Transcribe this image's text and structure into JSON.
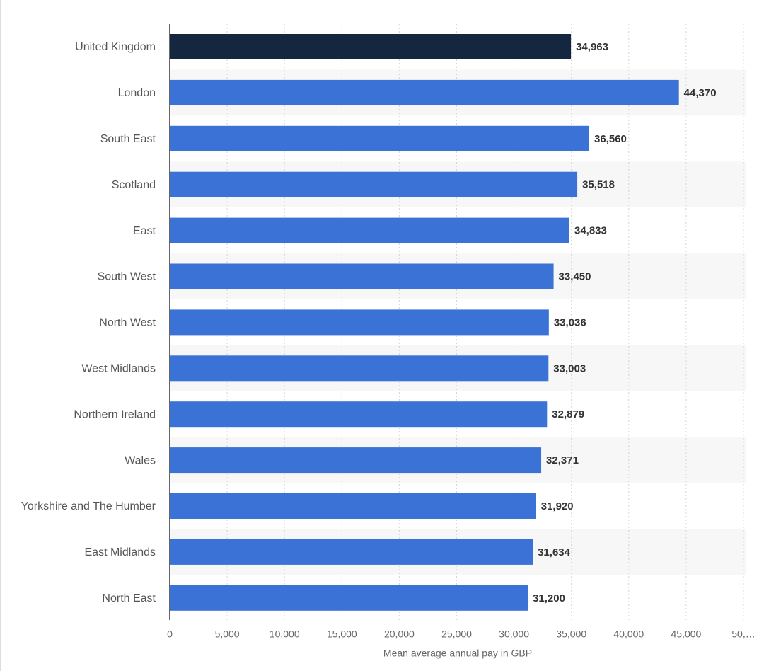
{
  "chart_data": {
    "type": "barh",
    "categories": [
      "United Kingdom",
      "London",
      "South East",
      "Scotland",
      "East",
      "South West",
      "North West",
      "West Midlands",
      "Northern Ireland",
      "Wales",
      "Yorkshire and The Humber",
      "East Midlands",
      "North East"
    ],
    "values": [
      34963,
      44370,
      36560,
      35518,
      34833,
      33450,
      33036,
      33003,
      32879,
      32371,
      31920,
      31634,
      31200
    ],
    "value_labels": [
      "34,963",
      "44,370",
      "36,560",
      "35,518",
      "34,833",
      "33,450",
      "33,036",
      "33,003",
      "32,879",
      "32,371",
      "31,920",
      "31,634",
      "31,200"
    ],
    "colors": [
      "#15263f",
      "#3a72d5",
      "#3a72d5",
      "#3a72d5",
      "#3a72d5",
      "#3a72d5",
      "#3a72d5",
      "#3a72d5",
      "#3a72d5",
      "#3a72d5",
      "#3a72d5",
      "#3a72d5",
      "#3a72d5"
    ],
    "xlabel": "Mean average annual pay in GBP",
    "xlim": [
      0,
      50000
    ],
    "xticks": [
      0,
      {
        "value": 5000,
        "label": "5,000"
      },
      {
        "value": 10000,
        "label": "10,000"
      },
      {
        "value": 15000,
        "label": "15,000"
      },
      {
        "value": 20000,
        "label": "20,000"
      },
      {
        "value": 25000,
        "label": "25,000"
      },
      {
        "value": 30000,
        "label": "30,000"
      },
      {
        "value": 35000,
        "label": "35,000"
      },
      {
        "value": 40000,
        "label": "40,000"
      },
      {
        "value": 45000,
        "label": "45,000"
      },
      {
        "value": 50000,
        "label": "50,…"
      }
    ],
    "grid": true
  }
}
